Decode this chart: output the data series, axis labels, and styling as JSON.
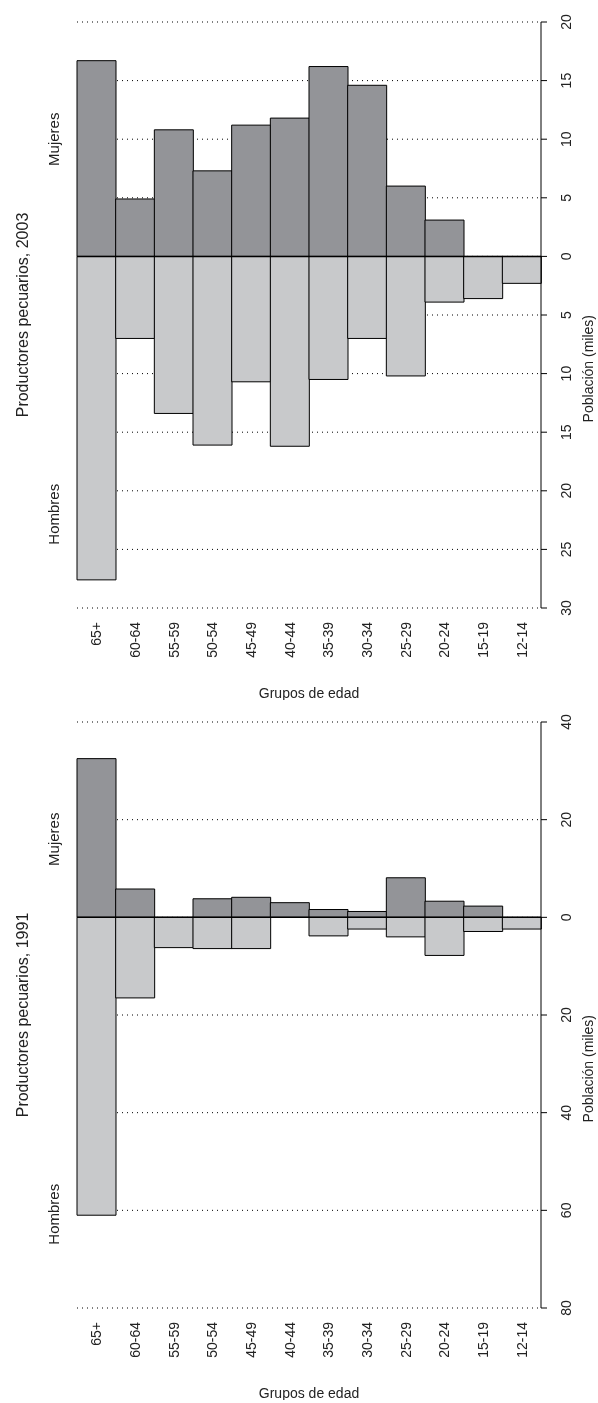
{
  "chart_data": [
    {
      "type": "bar",
      "stacked": true,
      "title": "Productores pecuarios, 2003",
      "xlabel": "Grupos de edad",
      "ylabel": "Población (miles)",
      "categories": [
        "65+",
        "60-64",
        "55-59",
        "50-54",
        "45-49",
        "40-44",
        "35-39",
        "30-34",
        "25-29",
        "20-24",
        "15-19",
        "12-14"
      ],
      "series": [
        {
          "name": "Hombres",
          "color": "#c8c9cb",
          "values": [
            -27.6,
            -7.0,
            -13.4,
            -16.1,
            -10.7,
            -16.2,
            -10.5,
            -7.0,
            -10.2,
            -3.9,
            -3.6,
            -2.3
          ]
        },
        {
          "name": "Mujeres",
          "color": "#939498",
          "values": [
            16.7,
            4.9,
            10.8,
            7.3,
            11.2,
            11.8,
            16.2,
            14.6,
            6.0,
            3.1,
            null,
            null
          ]
        }
      ],
      "ylim": [
        -30,
        20
      ],
      "yticks": [
        {
          "value": -30,
          "label": "30"
        },
        {
          "value": -25,
          "label": "25"
        },
        {
          "value": -20,
          "label": "20"
        },
        {
          "value": -15,
          "label": "15"
        },
        {
          "value": -10,
          "label": "10"
        },
        {
          "value": -5,
          "label": "5"
        },
        0,
        5,
        10,
        15,
        20
      ],
      "grid": "y",
      "ref_lines": [
        {
          "axis": "y",
          "value": 0,
          "color": "#000000"
        }
      ]
    },
    {
      "type": "bar",
      "stacked": true,
      "title": "Productores pecuarios, 1991",
      "xlabel": "Grupos de edad",
      "ylabel": "Población (miles)",
      "categories": [
        "65+",
        "60-64",
        "55-59",
        "50-54",
        "45-49",
        "40-44",
        "35-39",
        "30-34",
        "25-29",
        "20-24",
        "15-19",
        "12-14"
      ],
      "series": [
        {
          "name": "Hombres",
          "color": "#c8c9cb",
          "values": [
            -61,
            -16.5,
            -6.2,
            -6.4,
            -6.4,
            null,
            -3.8,
            -2.4,
            -4.0,
            -7.8,
            -2.9,
            -2.4
          ]
        },
        {
          "name": "Mujeres",
          "color": "#939498",
          "values": [
            32.5,
            5.8,
            null,
            3.8,
            4.1,
            3.0,
            1.6,
            1.2,
            8.1,
            3.3,
            2.3,
            null
          ]
        }
      ],
      "ylim": [
        -80,
        40
      ],
      "yticks": [
        {
          "value": -80,
          "label": "80"
        },
        {
          "value": -60,
          "label": "60"
        },
        {
          "value": -40,
          "label": "40"
        },
        {
          "value": -20,
          "label": "20"
        },
        0,
        20,
        40
      ],
      "grid": "y",
      "ref_lines": [
        {
          "axis": "y",
          "value": 0,
          "color": "#000000"
        }
      ]
    }
  ]
}
